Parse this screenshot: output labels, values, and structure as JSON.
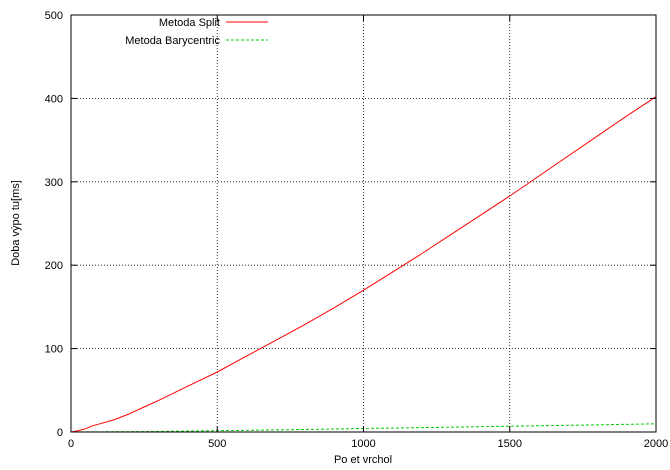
{
  "chart_data": {
    "type": "line",
    "xlabel": "Po et vrchol",
    "ylabel": "Doba výpo tu[ms]",
    "xlim": [
      0,
      2000
    ],
    "ylim": [
      0,
      500
    ],
    "x_ticks": [
      0,
      500,
      1000,
      1500,
      2000
    ],
    "y_ticks": [
      0,
      100,
      200,
      300,
      400,
      500
    ],
    "x_tick_labels": [
      "0",
      "500",
      "1000",
      "1500",
      "2000"
    ],
    "y_tick_labels": [
      "0",
      "100",
      "200",
      "300",
      "400",
      "500"
    ],
    "grid": true,
    "legend_position": "top-left",
    "series": [
      {
        "name": "Metoda Split",
        "color": "#ff0000",
        "style": "solid",
        "x": [
          0,
          25,
          50,
          75,
          100,
          150,
          200,
          250,
          300,
          400,
          500,
          600,
          700,
          800,
          900,
          1000,
          1100,
          1200,
          1300,
          1400,
          1500,
          1600,
          1700,
          1800,
          1900,
          2000
        ],
        "y": [
          0,
          1.5,
          4,
          7.5,
          10,
          15,
          22,
          30,
          38,
          55,
          72,
          91,
          110,
          129,
          149,
          170,
          192,
          214,
          237,
          260,
          283,
          307,
          331,
          355,
          379,
          402
        ]
      },
      {
        "name": "Metoda Barycentric",
        "color": "#00cc00",
        "style": "dashed",
        "x": [
          0,
          250,
          500,
          750,
          1000,
          1250,
          1500,
          1750,
          2000
        ],
        "y": [
          0,
          0.5,
          1.5,
          2.8,
          4.2,
          5.5,
          7,
          8.3,
          9.8
        ]
      }
    ]
  }
}
